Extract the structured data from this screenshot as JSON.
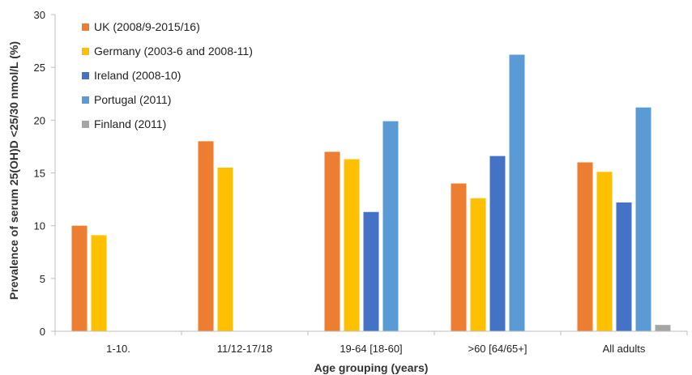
{
  "chart_data": {
    "type": "bar",
    "title": "",
    "xlabel": "Age grouping (years)",
    "ylabel": "Prevalence of serum 25(OH)D <25/30 nmol/L (%)",
    "ylim": [
      0,
      30
    ],
    "yticks": [
      0,
      5,
      10,
      15,
      20,
      25,
      30
    ],
    "grid": false,
    "legend_position": "top-left",
    "categories": [
      "1-10.",
      "11/12-17/18",
      "19-64 [18-60]",
      ">60 [64/65+]",
      "All adults"
    ],
    "series": [
      {
        "name": "UK (2008/9-2015/16)",
        "color": "#ED7D31",
        "values": [
          10,
          18,
          17,
          14,
          16
        ]
      },
      {
        "name": "Germany (2003-6 and 2008-11)",
        "color": "#FFC000",
        "values": [
          9.1,
          15.5,
          16.3,
          12.6,
          15.1
        ]
      },
      {
        "name": "Ireland (2008-10)",
        "color": "#4472C4",
        "values": [
          null,
          null,
          11.3,
          16.6,
          12.2
        ]
      },
      {
        "name": "Portugal (2011)",
        "color": "#5B9BD5",
        "values": [
          null,
          null,
          19.9,
          26.2,
          21.2
        ]
      },
      {
        "name": "Finland (2011)",
        "color": "#A5A5A5",
        "values": [
          null,
          null,
          null,
          null,
          0.6
        ]
      }
    ]
  }
}
